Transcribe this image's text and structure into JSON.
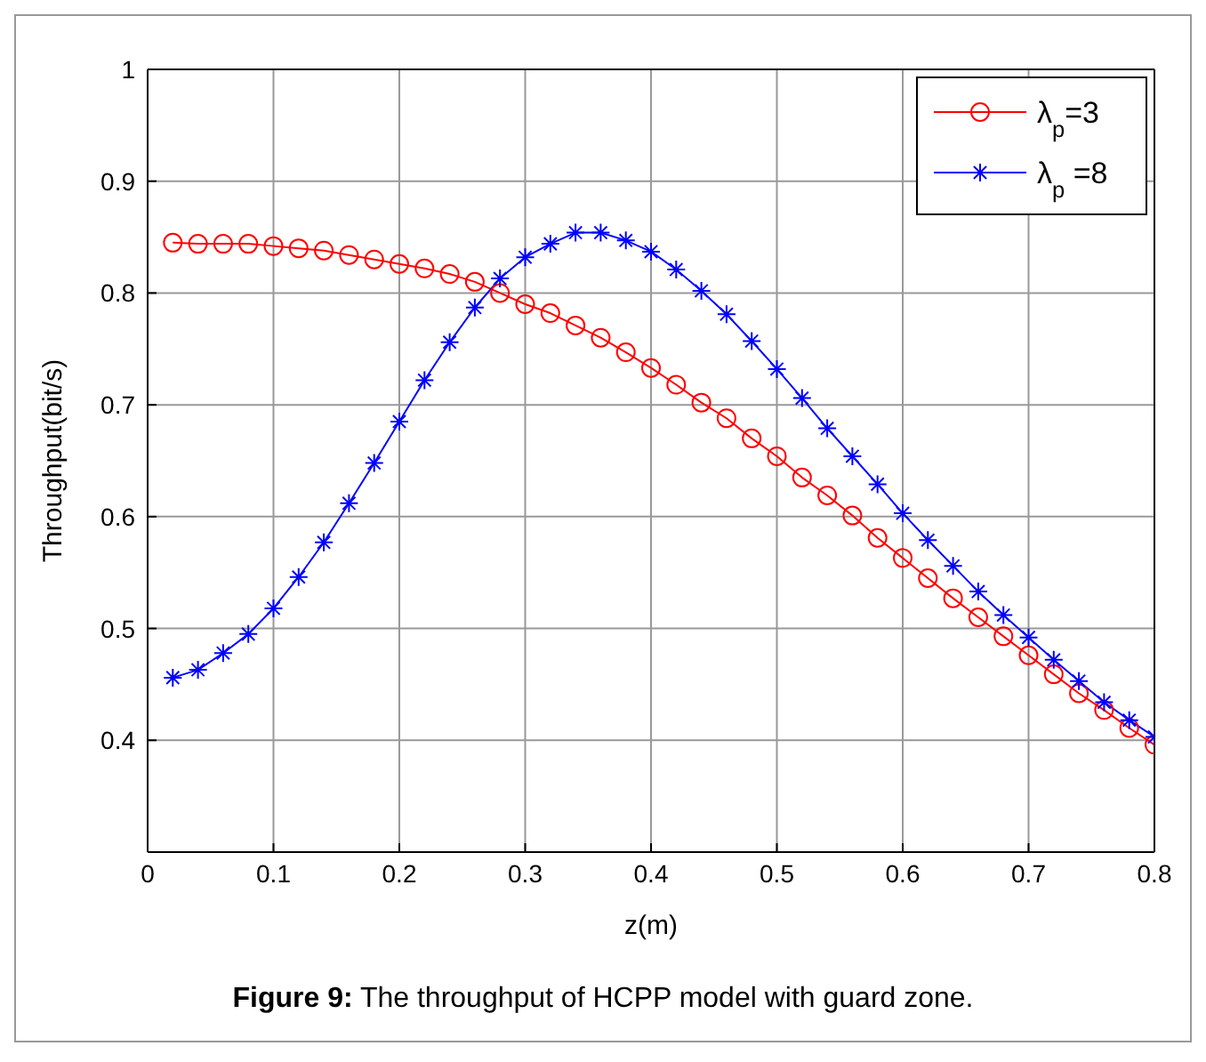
{
  "chart_data": {
    "type": "line",
    "x": [
      0.02,
      0.04,
      0.06,
      0.08,
      0.1,
      0.12,
      0.14,
      0.16,
      0.18,
      0.2,
      0.22,
      0.24,
      0.26,
      0.28,
      0.3,
      0.32,
      0.34,
      0.36,
      0.38,
      0.4,
      0.42,
      0.44,
      0.46,
      0.48,
      0.5,
      0.52,
      0.54,
      0.56,
      0.58,
      0.6,
      0.62,
      0.64,
      0.66,
      0.68,
      0.7,
      0.72,
      0.74,
      0.76,
      0.78,
      0.8
    ],
    "series": [
      {
        "name": "λ$_{p}$=3",
        "color": "#ff0000",
        "marker": "circle",
        "values": [
          0.845,
          0.844,
          0.844,
          0.844,
          0.842,
          0.84,
          0.838,
          0.834,
          0.83,
          0.826,
          0.822,
          0.817,
          0.81,
          0.8,
          0.79,
          0.782,
          0.771,
          0.76,
          0.747,
          0.733,
          0.718,
          0.702,
          0.688,
          0.67,
          0.654,
          0.635,
          0.619,
          0.601,
          0.581,
          0.563,
          0.545,
          0.527,
          0.51,
          0.493,
          0.476,
          0.459,
          0.442,
          0.427,
          0.411,
          0.396
        ]
      },
      {
        "name": "λ$_{p}$ =8",
        "color": "#0000ff",
        "marker": "cross",
        "values": [
          0.456,
          0.463,
          0.478,
          0.495,
          0.518,
          0.546,
          0.577,
          0.612,
          0.648,
          0.685,
          0.722,
          0.756,
          0.787,
          0.813,
          0.832,
          0.844,
          0.854,
          0.854,
          0.847,
          0.837,
          0.821,
          0.802,
          0.781,
          0.757,
          0.732,
          0.706,
          0.679,
          0.654,
          0.629,
          0.603,
          0.579,
          0.556,
          0.533,
          0.512,
          0.492,
          0.472,
          0.453,
          0.434,
          0.418,
          0.403
        ]
      }
    ],
    "xlabel": "z(m)",
    "ylabel": "Throughput(bit/s)",
    "xlim": [
      0,
      0.8
    ],
    "xticks": [
      0,
      0.1,
      0.2,
      0.3,
      0.4,
      0.5,
      0.6,
      0.7,
      0.8
    ],
    "ylim": [
      0.3,
      1
    ],
    "yticks": [
      0.4,
      0.5,
      0.6,
      0.7,
      0.8,
      0.9,
      1
    ],
    "grid": true,
    "legend": "top right",
    "line_style": "solid",
    "annotations": [
      "Figure 9: The throughput of HCPP model with guard zone."
    ]
  }
}
